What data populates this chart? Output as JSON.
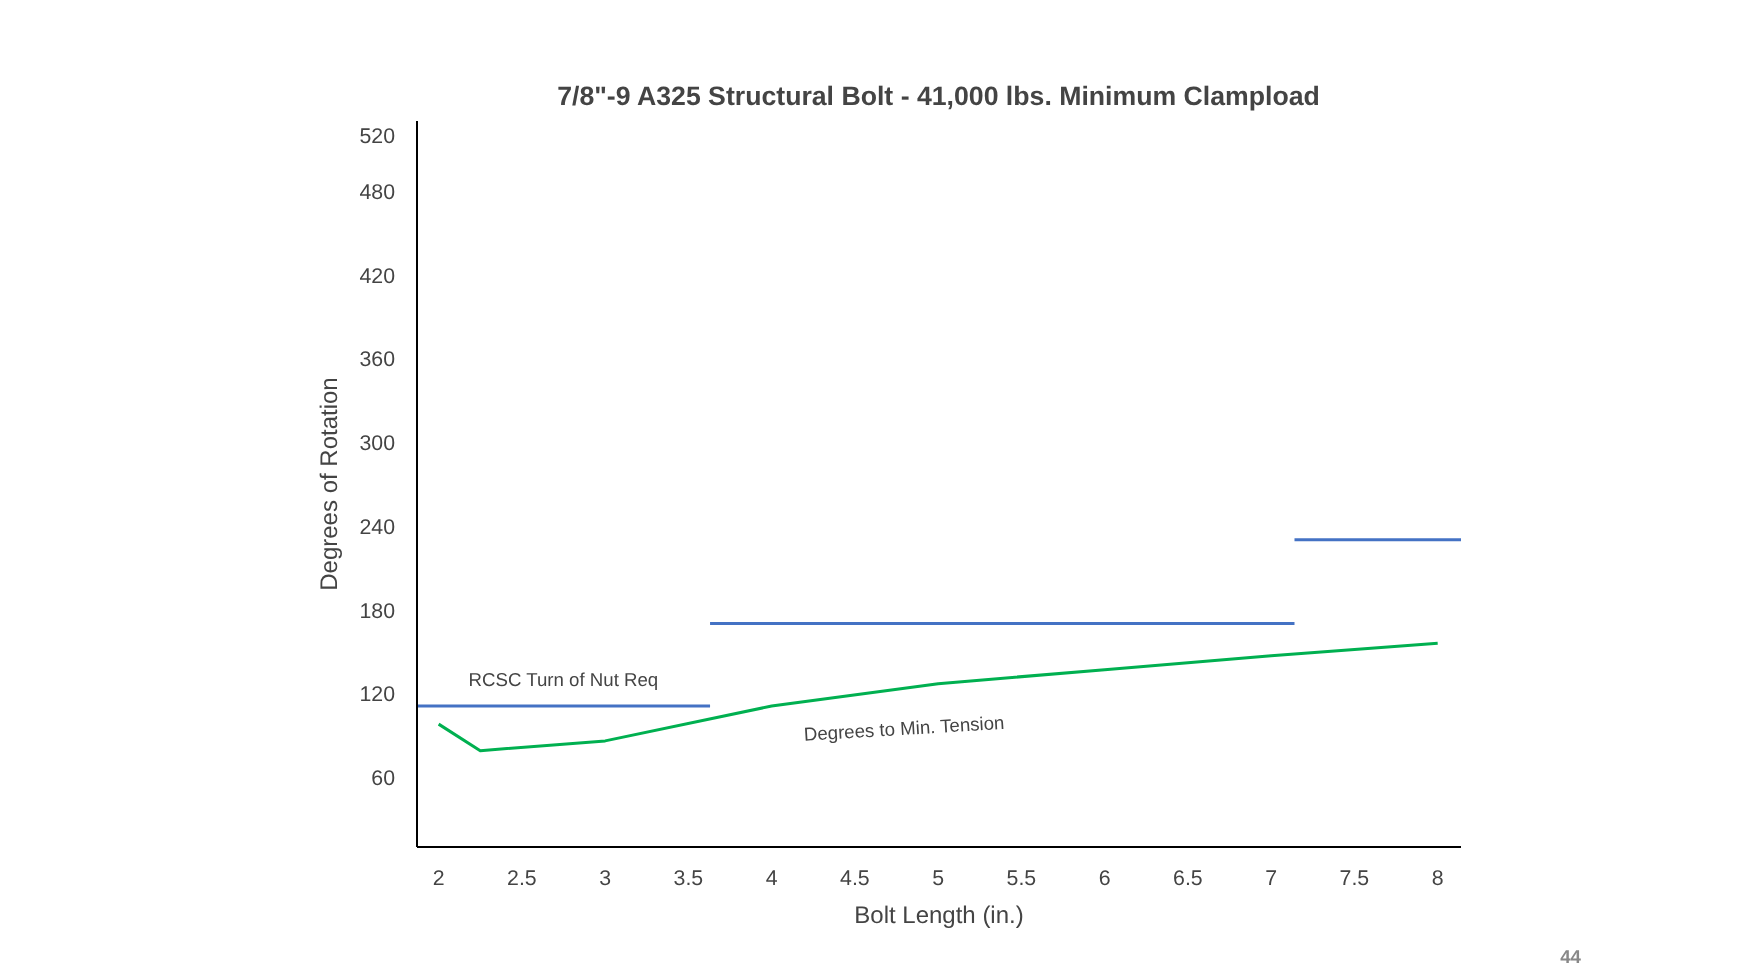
{
  "chart_data": {
    "type": "line",
    "title": "7/8\"-9 A325 Structural Bolt - 41,000 lbs. Minimum Clampload",
    "xlabel": "Bolt Length (in.)",
    "ylabel": "Degrees of Rotation",
    "series": [
      {
        "name": "Degrees to Min. Tension",
        "color": "#00b050",
        "x": [
          2,
          2.25,
          3,
          4,
          5,
          6,
          7,
          8
        ],
        "values": [
          98,
          79,
          86,
          111,
          127,
          137,
          147,
          156
        ]
      },
      {
        "name": "RCSC Turn of Nut Req",
        "color": "#4472c4",
        "x": [
          1.87,
          3.63
        ],
        "values": [
          111,
          111
        ]
      },
      {
        "color": "#4472c4",
        "x": [
          3.63,
          7.14
        ],
        "values": [
          170,
          170
        ]
      },
      {
        "color": "#4472c4",
        "x": [
          7.14,
          8.14
        ],
        "values": [
          230,
          230
        ]
      }
    ],
    "xlim": [
      1.87,
      8.14
    ],
    "ylim": [
      10,
      530
    ],
    "xticks": [
      2,
      2.5,
      3,
      3.5,
      4,
      4.5,
      5,
      5.5,
      6,
      6.5,
      7,
      7.5,
      8
    ],
    "yticks": [
      60,
      120,
      180,
      240,
      300,
      360,
      420,
      480,
      520
    ],
    "grid": false,
    "marker": "none",
    "line_style": "solid",
    "annotations": [
      "44"
    ]
  }
}
